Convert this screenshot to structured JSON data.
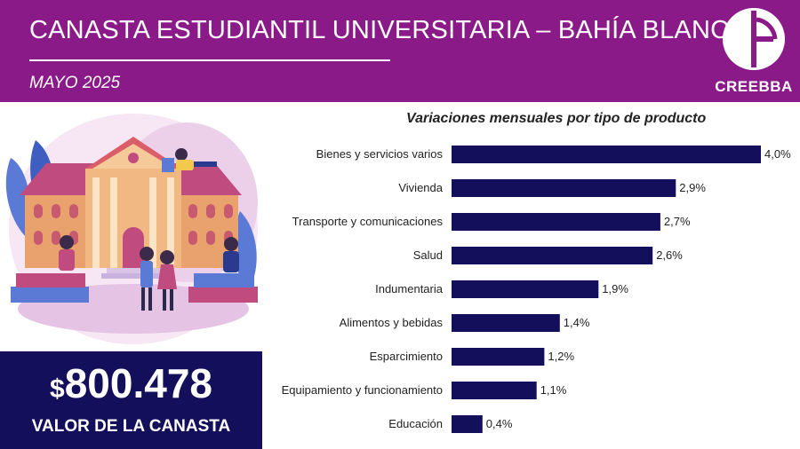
{
  "header": {
    "title": "CANASTA ESTUDIANTIL UNIVERSITARIA – BAHÍA BLANCA",
    "subtitle": "MAYO 2025",
    "logo_text": "CREEBBA"
  },
  "summary": {
    "currency": "$",
    "amount": "800.478",
    "label": "VALOR DE LA CANASTA"
  },
  "colors": {
    "header_bg": "#8b1a89",
    "bar": "#130f5b",
    "value_box": "#130f5b"
  },
  "chart_data": {
    "type": "bar",
    "orientation": "horizontal",
    "title": "Variaciones mensuales por tipo de producto",
    "categories": [
      "Bienes y servicios varios",
      "Vivienda",
      "Transporte y comunicaciones",
      "Salud",
      "Indumentaria",
      "Alimentos y bebidas",
      "Esparcimiento",
      "Equipamiento y funcionamiento",
      "Educación"
    ],
    "values": [
      4.0,
      2.9,
      2.7,
      2.6,
      1.9,
      1.4,
      1.2,
      1.1,
      0.4
    ],
    "value_labels": [
      "4,0%",
      "2,9%",
      "2,7%",
      "2,6%",
      "1,9%",
      "1,4%",
      "1,2%",
      "1,1%",
      "0,4%"
    ],
    "unit": "%",
    "xlim": [
      0,
      4.0
    ],
    "grid": false,
    "legend": "none"
  }
}
